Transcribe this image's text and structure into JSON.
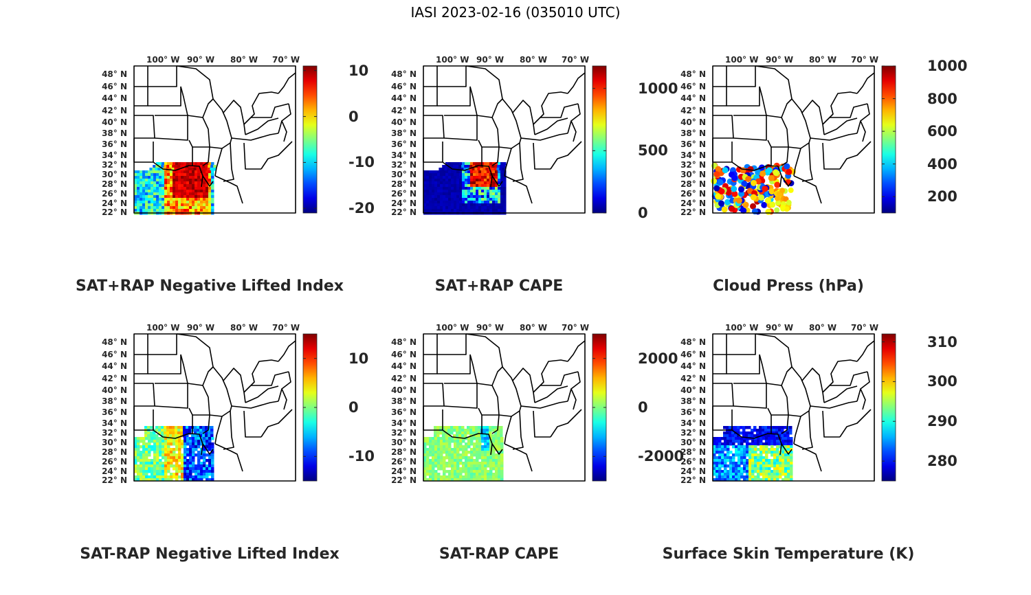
{
  "figure_title": "IASI 2023-02-16 (035010 UTC)",
  "lon_labels": [
    "100° W",
    "90° W",
    "80° W",
    "70° W"
  ],
  "lat_labels": [
    "48° N",
    "46° N",
    "44° N",
    "42° N",
    "40° N",
    "38° N",
    "36° N",
    "34° N",
    "32° N",
    "30° N",
    "28° N",
    "26° N",
    "24° N",
    "22° N"
  ],
  "colormap": "jet",
  "panels": [
    {
      "id": "p1",
      "title": "SAT+RAP Negative Lifted Index",
      "colorbar_ticks": [
        "10",
        "0",
        "-10",
        "-20"
      ],
      "colorbar_range": [
        -21,
        11
      ],
      "data_pattern": "lifted-index-total"
    },
    {
      "id": "p2",
      "title": "SAT+RAP CAPE",
      "colorbar_ticks": [
        "1000",
        "500",
        "0"
      ],
      "colorbar_range": [
        0,
        1180
      ],
      "data_pattern": "cape-total"
    },
    {
      "id": "p3",
      "title": "Cloud Press (hPa)",
      "colorbar_ticks": [
        "1000",
        "800",
        "600",
        "400",
        "200"
      ],
      "colorbar_range": [
        100,
        1000
      ],
      "data_pattern": "cloud-pressure"
    },
    {
      "id": "p4",
      "title": "SAT-RAP Negative Lifted Index",
      "colorbar_ticks": [
        "10",
        "0",
        "-10"
      ],
      "colorbar_range": [
        -15,
        15
      ],
      "data_pattern": "lifted-index-diff"
    },
    {
      "id": "p5",
      "title": "SAT-RAP CAPE",
      "colorbar_ticks": [
        "2000",
        "0",
        "-2000"
      ],
      "colorbar_range": [
        -3000,
        3000
      ],
      "data_pattern": "cape-diff"
    },
    {
      "id": "p6",
      "title": "Surface Skin Temperature (K)",
      "colorbar_ticks": [
        "310",
        "300",
        "290",
        "280"
      ],
      "colorbar_range": [
        275,
        312
      ],
      "data_pattern": "skin-temperature"
    }
  ]
}
